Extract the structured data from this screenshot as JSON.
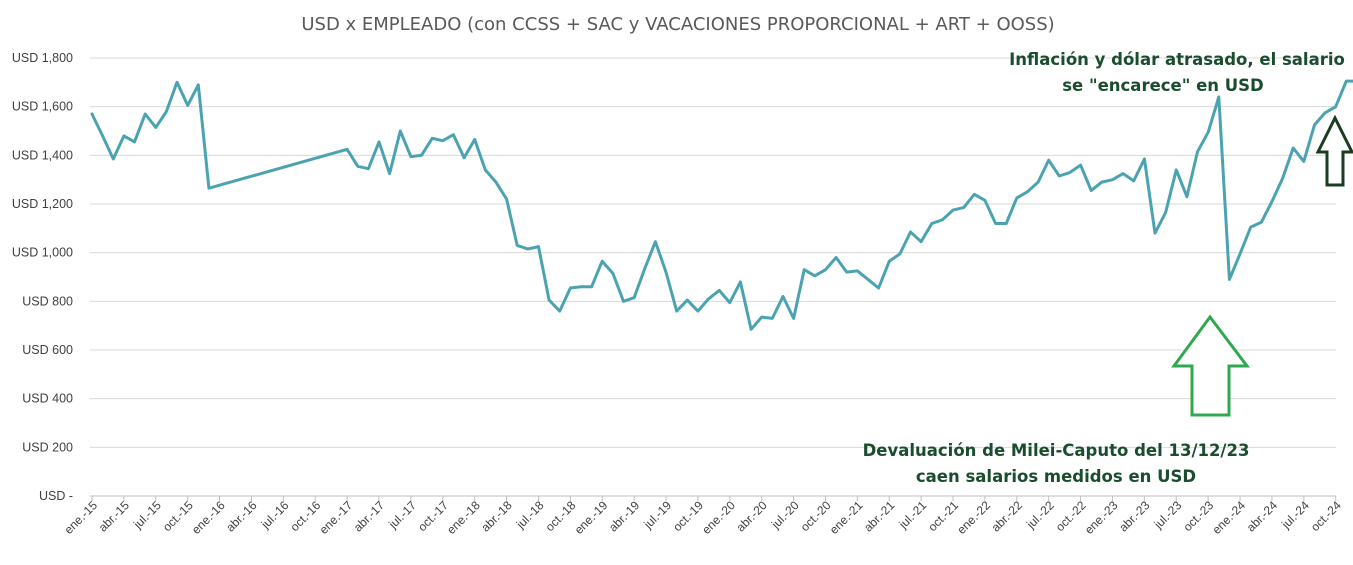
{
  "chart_data": {
    "type": "line",
    "title": "USD x EMPLEADO (con CCSS + SAC y VACACIONES PROPORCIONAL + ART + OOSS)",
    "xlabel": "",
    "ylabel": "",
    "ylim": [
      0,
      1800
    ],
    "grid": true,
    "y_ticks": [
      {
        "value": 0,
        "label": "USD -"
      },
      {
        "value": 200,
        "label": "USD 200"
      },
      {
        "value": 400,
        "label": "USD 400"
      },
      {
        "value": 600,
        "label": "USD 600"
      },
      {
        "value": 800,
        "label": "USD 800"
      },
      {
        "value": 1000,
        "label": "USD 1,000"
      },
      {
        "value": 1200,
        "label": "USD 1,200"
      },
      {
        "value": 1400,
        "label": "USD 1,400"
      },
      {
        "value": 1600,
        "label": "USD 1,600"
      },
      {
        "value": 1800,
        "label": "USD 1,800"
      }
    ],
    "categories": [
      "ene.-15",
      "abr.-15",
      "jul.-15",
      "oct.-15",
      "ene.-16",
      "abr.-16",
      "jul.-16",
      "oct.-16",
      "ene.-17",
      "abr.-17",
      "jul.-17",
      "oct.-17",
      "ene.-18",
      "abr.-18",
      "jul.-18",
      "oct.-18",
      "ene.-19",
      "abr.-19",
      "jul.-19",
      "oct.-19",
      "ene.-20",
      "abr.-20",
      "jul.-20",
      "oct.-20",
      "ene.-21",
      "abr.-21",
      "jul.-21",
      "oct.-21",
      "ene.-22",
      "abr.-22",
      "jul.-22",
      "oct.-22",
      "ene.-23",
      "abr.-23",
      "jul.-23",
      "oct.-23",
      "ene.-24",
      "abr.-24",
      "jul.-24",
      "oct.-24"
    ],
    "series": [
      {
        "name": "USD x empleado",
        "color": "#4ba3b2",
        "points": [
          [
            0,
            1570
          ],
          [
            1,
            1480
          ],
          [
            2,
            1385
          ],
          [
            3,
            1480
          ],
          [
            4,
            1455
          ],
          [
            5,
            1570
          ],
          [
            6,
            1515
          ],
          [
            7,
            1580
          ],
          [
            8,
            1700
          ],
          [
            9,
            1605
          ],
          [
            10,
            1690
          ],
          [
            11,
            1265
          ],
          [
            24,
            1425
          ],
          [
            25,
            1355
          ],
          [
            26,
            1345
          ],
          [
            27,
            1455
          ],
          [
            28,
            1325
          ],
          [
            29,
            1500
          ],
          [
            30,
            1395
          ],
          [
            31,
            1400
          ],
          [
            32,
            1470
          ],
          [
            33,
            1460
          ],
          [
            34,
            1485
          ],
          [
            35,
            1390
          ],
          [
            36,
            1465
          ],
          [
            37,
            1340
          ],
          [
            38,
            1290
          ],
          [
            39,
            1220
          ],
          [
            40,
            1030
          ],
          [
            41,
            1015
          ],
          [
            42,
            1025
          ],
          [
            43,
            805
          ],
          [
            44,
            760
          ],
          [
            45,
            855
          ],
          [
            46,
            860
          ],
          [
            47,
            860
          ],
          [
            48,
            965
          ],
          [
            49,
            915
          ],
          [
            50,
            800
          ],
          [
            51,
            815
          ],
          [
            52,
            935
          ],
          [
            53,
            1045
          ],
          [
            54,
            920
          ],
          [
            55,
            760
          ],
          [
            56,
            805
          ],
          [
            57,
            760
          ],
          [
            58,
            810
          ],
          [
            59,
            845
          ],
          [
            60,
            795
          ],
          [
            61,
            880
          ],
          [
            62,
            685
          ],
          [
            63,
            735
          ],
          [
            64,
            730
          ],
          [
            65,
            820
          ],
          [
            66,
            730
          ],
          [
            67,
            930
          ],
          [
            68,
            905
          ],
          [
            69,
            930
          ],
          [
            70,
            980
          ],
          [
            71,
            920
          ],
          [
            72,
            925
          ],
          [
            73,
            890
          ],
          [
            74,
            855
          ],
          [
            75,
            965
          ],
          [
            76,
            995
          ],
          [
            77,
            1085
          ],
          [
            78,
            1045
          ],
          [
            79,
            1120
          ],
          [
            80,
            1135
          ],
          [
            81,
            1175
          ],
          [
            82,
            1185
          ],
          [
            83,
            1240
          ],
          [
            84,
            1215
          ],
          [
            85,
            1120
          ],
          [
            86,
            1120
          ],
          [
            87,
            1225
          ],
          [
            88,
            1250
          ],
          [
            89,
            1290
          ],
          [
            90,
            1380
          ],
          [
            91,
            1315
          ],
          [
            92,
            1330
          ],
          [
            93,
            1360
          ],
          [
            94,
            1255
          ],
          [
            95,
            1290
          ],
          [
            96,
            1300
          ],
          [
            97,
            1325
          ],
          [
            98,
            1295
          ],
          [
            99,
            1385
          ],
          [
            100,
            1080
          ],
          [
            101,
            1165
          ],
          [
            102,
            1340
          ],
          [
            103,
            1230
          ],
          [
            104,
            1415
          ],
          [
            105,
            1495
          ],
          [
            106,
            1640
          ],
          [
            107,
            890
          ],
          [
            108,
            995
          ],
          [
            109,
            1105
          ],
          [
            110,
            1125
          ],
          [
            111,
            1210
          ],
          [
            112,
            1305
          ],
          [
            113,
            1430
          ],
          [
            114,
            1375
          ],
          [
            115,
            1525
          ],
          [
            116,
            1575
          ],
          [
            117,
            1600
          ],
          [
            118,
            1705
          ],
          [
            119,
            1705
          ]
        ]
      }
    ],
    "annotations": [
      {
        "lines": [
          "Inflación y dólar atrasado, el salario",
          "se \"encarece\" en USD"
        ],
        "arrow": "up",
        "color": "#1a3d1f"
      },
      {
        "lines": [
          "Devaluación de Milei-Caputo del 13/12/23",
          "caen salarios medidos en USD"
        ],
        "arrow": "up",
        "color": "#2fa84f"
      }
    ]
  }
}
